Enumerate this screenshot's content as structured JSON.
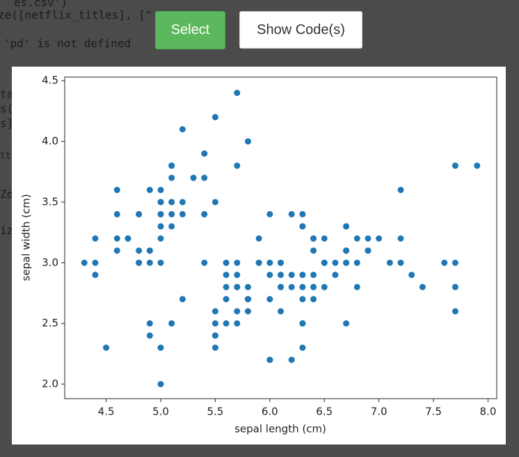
{
  "background": {
    "lines": [
      "es.csv')",
      "ze([netflix_titles], [\"",
      "'pd' is not defined",
      "tas",
      "s(a",
      "s],",
      "tte",
      "Zoo",
      "iz"
    ]
  },
  "buttons": {
    "select": "Select",
    "show_code": "Show Code(s)"
  },
  "chart_data": {
    "type": "scatter",
    "x_label": "sepal length (cm)",
    "y_label": "sepal width (cm)",
    "color": "#1f77b4",
    "x": [
      5.1,
      4.9,
      4.7,
      4.6,
      5.0,
      5.4,
      4.6,
      5.0,
      4.4,
      4.9,
      5.4,
      4.8,
      4.8,
      4.3,
      5.8,
      5.7,
      5.4,
      5.1,
      5.7,
      5.1,
      5.4,
      5.1,
      4.6,
      5.1,
      4.8,
      5.0,
      5.0,
      5.2,
      5.2,
      4.7,
      4.8,
      5.4,
      5.2,
      5.5,
      4.9,
      5.0,
      5.5,
      4.9,
      4.4,
      5.1,
      5.0,
      4.5,
      4.4,
      5.0,
      5.1,
      4.8,
      5.1,
      4.6,
      5.3,
      5.0,
      7.0,
      6.4,
      6.9,
      5.5,
      6.5,
      5.7,
      6.3,
      4.9,
      6.6,
      5.2,
      5.0,
      5.9,
      6.0,
      6.1,
      5.6,
      6.7,
      5.6,
      5.8,
      6.2,
      5.6,
      5.9,
      6.1,
      6.3,
      6.1,
      6.4,
      6.6,
      6.8,
      6.7,
      6.0,
      5.7,
      5.5,
      5.5,
      5.8,
      6.0,
      5.4,
      6.0,
      6.7,
      6.3,
      5.6,
      5.5,
      5.5,
      6.1,
      5.8,
      5.0,
      5.6,
      5.7,
      5.7,
      6.2,
      5.1,
      5.7,
      6.3,
      5.8,
      7.1,
      6.3,
      6.5,
      7.6,
      4.9,
      7.3,
      6.7,
      7.2,
      6.5,
      6.4,
      6.8,
      5.7,
      5.8,
      6.4,
      6.5,
      7.7,
      7.7,
      6.0,
      6.9,
      5.6,
      7.7,
      6.3,
      6.7,
      7.2,
      6.2,
      6.1,
      6.4,
      7.2,
      7.4,
      7.9,
      6.4,
      6.3,
      6.1,
      7.7,
      6.3,
      6.4,
      6.0,
      6.9,
      6.7,
      6.9,
      5.8,
      6.8,
      6.7,
      6.7,
      6.3,
      6.5,
      6.2,
      5.9
    ],
    "values": [
      3.5,
      3.0,
      3.2,
      3.1,
      3.6,
      3.9,
      3.4,
      3.4,
      2.9,
      3.1,
      3.7,
      3.4,
      3.0,
      3.0,
      4.0,
      4.4,
      3.9,
      3.5,
      3.8,
      3.8,
      3.4,
      3.7,
      3.6,
      3.3,
      3.4,
      3.0,
      3.4,
      3.5,
      3.4,
      3.2,
      3.1,
      3.4,
      4.1,
      4.2,
      3.1,
      3.2,
      3.5,
      3.6,
      3.0,
      3.4,
      3.5,
      2.3,
      3.2,
      3.5,
      3.8,
      3.0,
      3.8,
      3.2,
      3.7,
      3.3,
      3.2,
      3.2,
      3.1,
      2.3,
      2.8,
      2.8,
      3.3,
      2.4,
      2.9,
      2.7,
      2.0,
      3.0,
      2.2,
      2.9,
      2.9,
      3.1,
      3.0,
      2.7,
      2.2,
      2.5,
      3.2,
      2.8,
      2.5,
      2.8,
      2.9,
      3.0,
      2.8,
      3.0,
      2.9,
      2.6,
      2.4,
      2.4,
      2.7,
      2.7,
      3.0,
      3.4,
      3.1,
      2.3,
      3.0,
      2.5,
      2.6,
      3.0,
      2.6,
      2.3,
      2.7,
      3.0,
      2.9,
      2.9,
      2.5,
      2.8,
      3.3,
      2.7,
      3.0,
      2.9,
      3.0,
      3.0,
      2.5,
      2.9,
      2.5,
      3.6,
      3.2,
      2.7,
      3.0,
      2.5,
      2.8,
      3.2,
      3.0,
      3.8,
      2.6,
      2.2,
      3.2,
      2.8,
      2.8,
      2.7,
      3.3,
      3.2,
      2.8,
      3.0,
      2.8,
      3.0,
      2.8,
      3.8,
      2.8,
      2.8,
      2.6,
      3.0,
      3.4,
      3.1,
      3.0,
      3.1,
      3.1,
      3.1,
      2.7,
      3.2,
      3.3,
      3.0,
      2.5,
      3.0,
      3.4,
      3.0
    ],
    "xlim": [
      4.12,
      8.08
    ],
    "xticks": [
      4.5,
      {
        "value": 5,
        "label": "5.0"
      },
      5.5,
      {
        "value": 6,
        "label": "6.0"
      },
      6.5,
      {
        "value": 7,
        "label": "7.0"
      },
      7.5,
      {
        "value": 8,
        "label": "8.0"
      }
    ],
    "ylim": [
      1.88,
      4.53
    ],
    "yticks": [
      {
        "value": 2,
        "label": "2.0"
      },
      2.5,
      {
        "value": 3,
        "label": "3.0"
      },
      3.5,
      {
        "value": 4,
        "label": "4.0"
      },
      4.5
    ],
    "grid": false
  }
}
